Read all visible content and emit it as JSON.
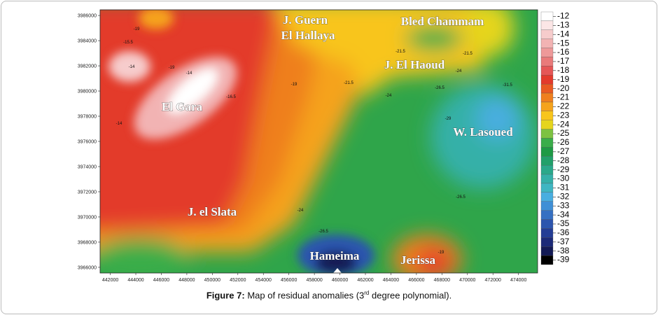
{
  "map": {
    "x_axis": {
      "xlim": [
        441200,
        475500
      ],
      "xticks": [
        442000,
        444000,
        446000,
        448000,
        450000,
        452000,
        454000,
        456000,
        458000,
        460000,
        462000,
        464000,
        466000,
        468000,
        470000,
        472000,
        474000
      ]
    },
    "y_axis": {
      "ylim": [
        3965550,
        3986450
      ],
      "yticks": [
        3966000,
        3968000,
        3970000,
        3972000,
        3974000,
        3976000,
        3978000,
        3980000,
        3982000,
        3984000,
        3986000
      ]
    },
    "colorbar": {
      "levels": [
        -12,
        -13,
        -14,
        -15,
        -16,
        -17,
        -18,
        -19,
        -20,
        -21,
        -22,
        -23,
        -24,
        -25,
        -26,
        -27,
        -28,
        -29,
        -30,
        -31,
        -32,
        -33,
        -34,
        -35,
        -36,
        -37,
        -38,
        -39
      ],
      "colors": [
        "#ffffff",
        "#fbe6e6",
        "#f6cccc",
        "#f2b3b3",
        "#ee9999",
        "#e97a7a",
        "#e55656",
        "#e33a2c",
        "#e95a22",
        "#ef7f1e",
        "#f5a31c",
        "#f8c51c",
        "#e5d51e",
        "#7dc242",
        "#3aad4a",
        "#1e9a45",
        "#22a06a",
        "#2aa88a",
        "#34b0a8",
        "#3fb6c2",
        "#48aee0",
        "#3f8fd6",
        "#3570c2",
        "#2c55ae",
        "#243d95",
        "#1c2a78",
        "#131a55",
        "#000000"
      ]
    },
    "place_names": [
      "J. Guern",
      "El Hallaya",
      "Bled Chammam",
      "J. El Haoud",
      "El Gara",
      "W. Lasoued",
      "J. el Slata",
      "Hameima",
      "Jerissa"
    ],
    "contour_labels": [
      -19,
      -15.5,
      -14,
      -14,
      -14,
      -16.5,
      -19,
      -21.5,
      -24,
      -26.5,
      -31.5,
      -29,
      -21.5,
      -24,
      -19,
      -26.5,
      -21.5,
      -26.5,
      -24,
      -19
    ],
    "caption": {
      "label": "Figure 7:",
      "text_before": "Map of residual anomalies (3",
      "superscript": "rd",
      "text_after": " degree polynomial)."
    }
  }
}
